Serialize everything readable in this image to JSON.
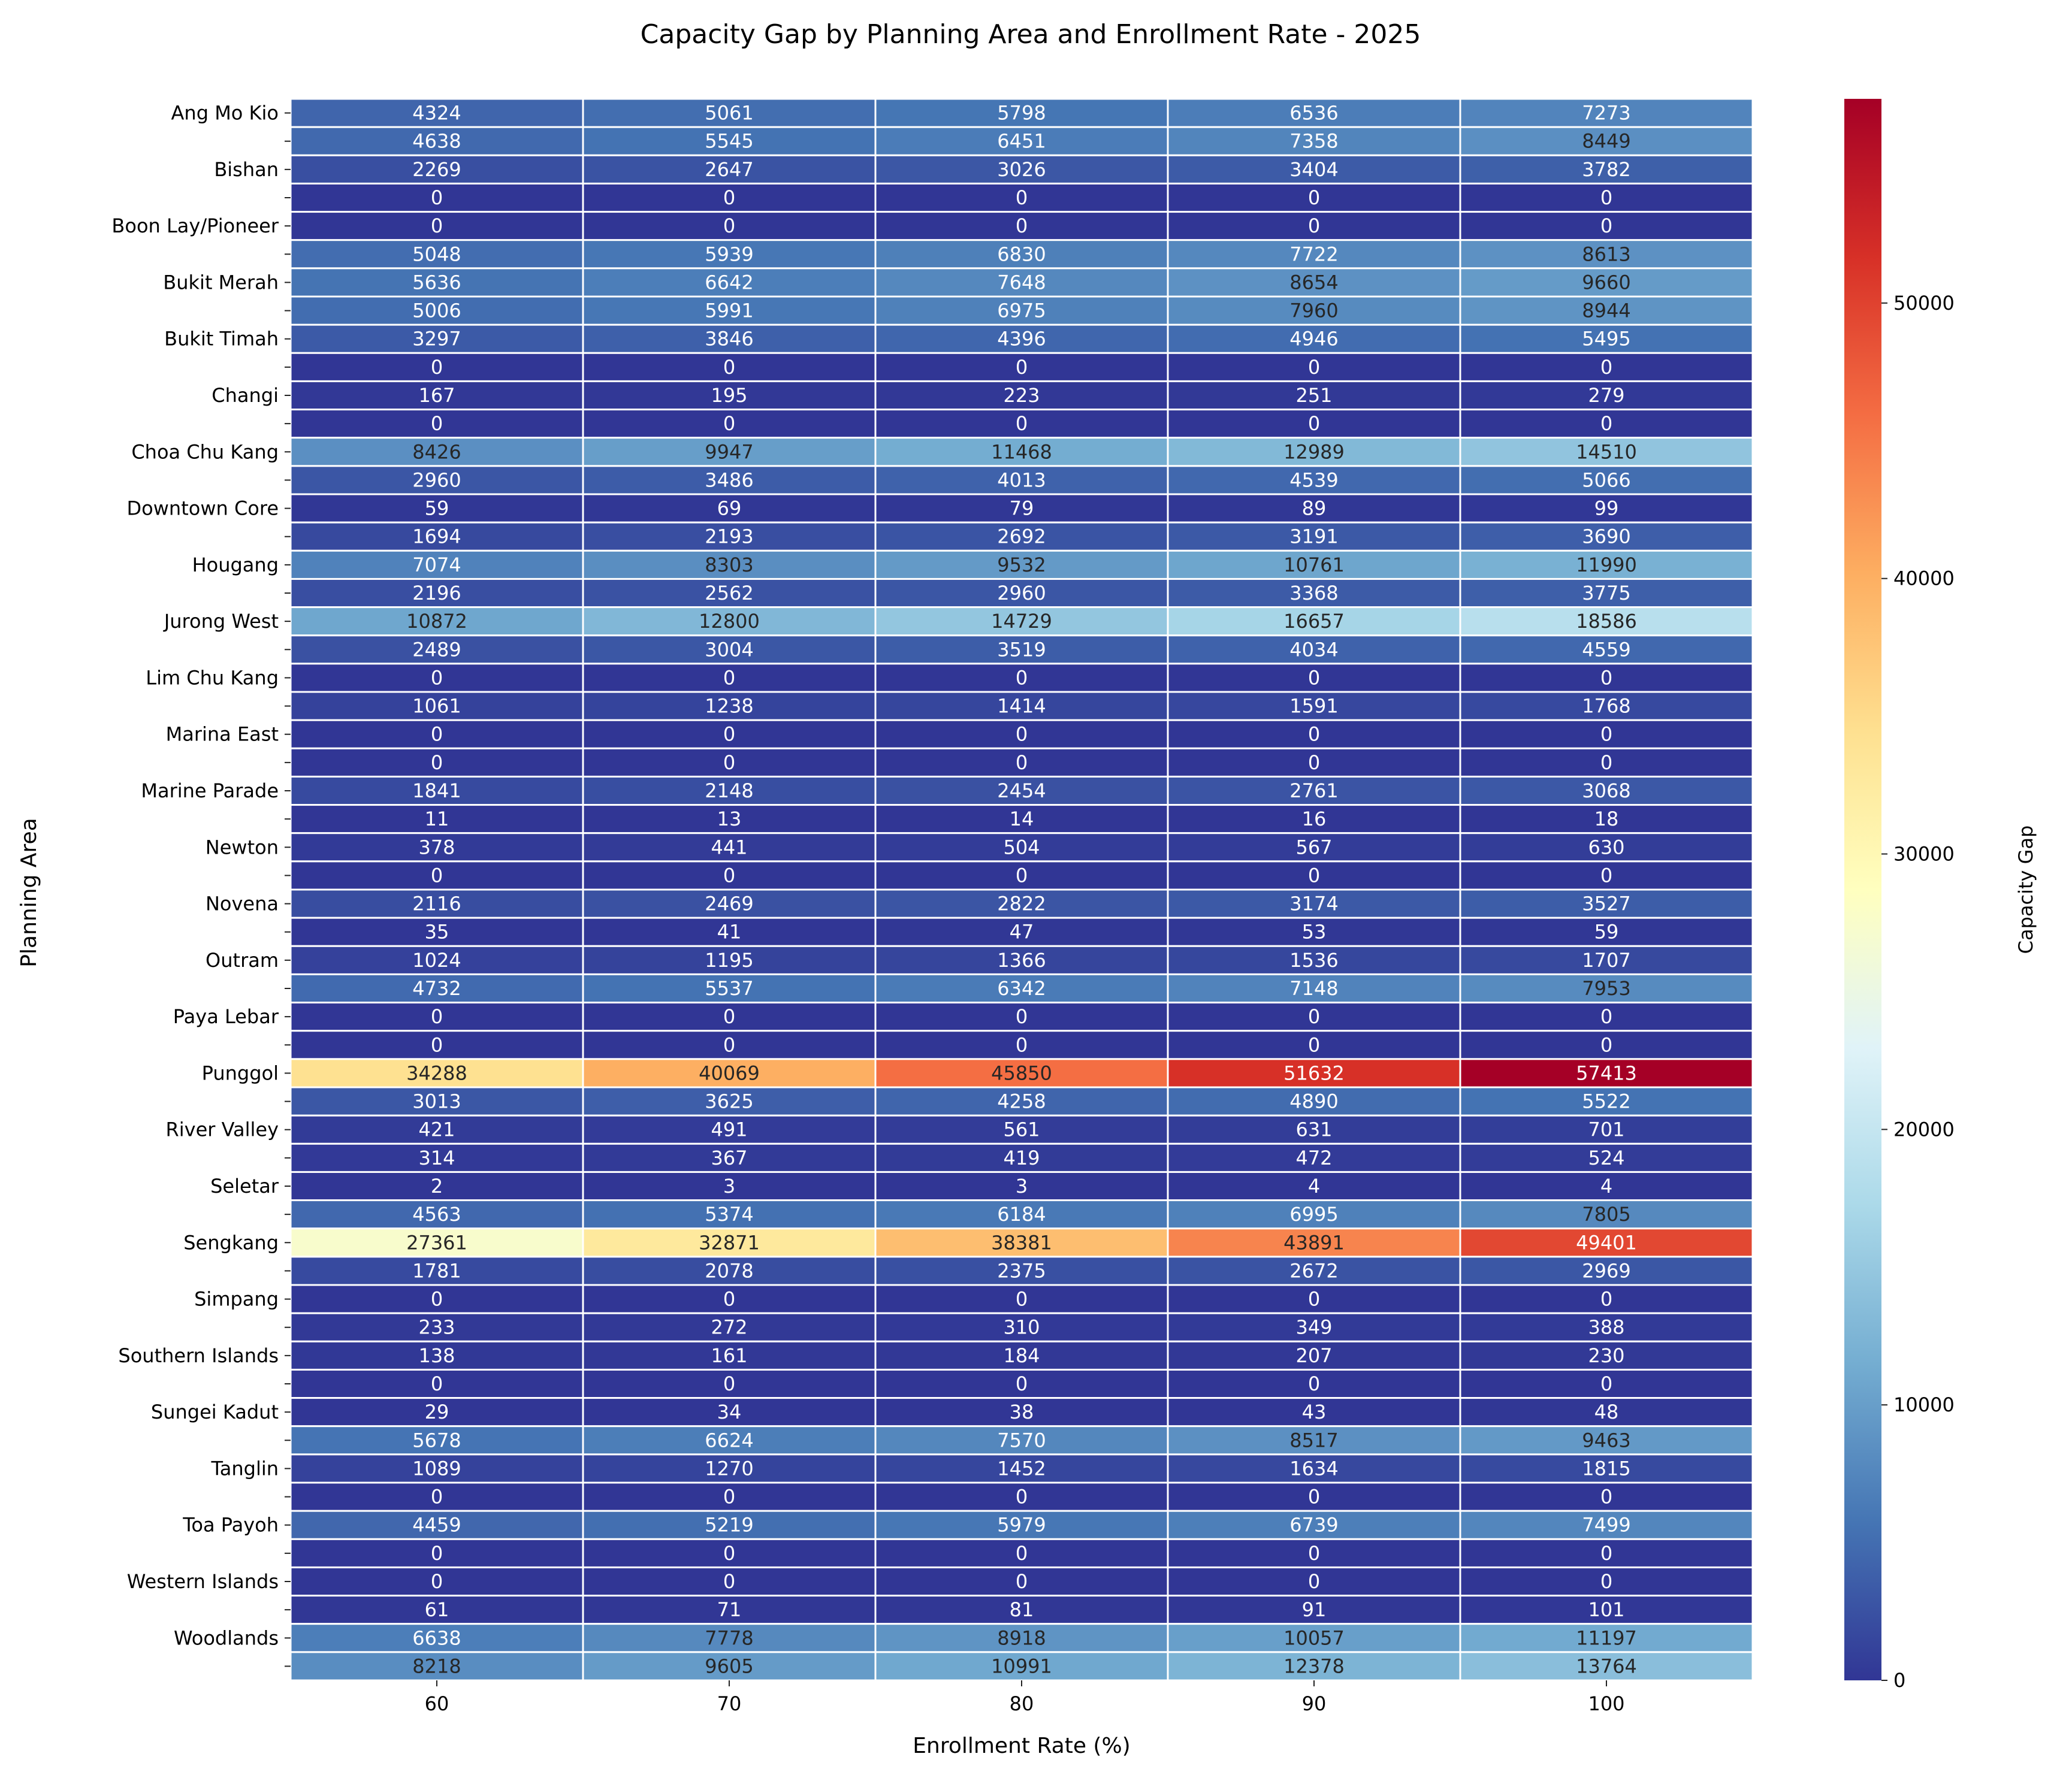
{
  "chart_data": {
    "type": "heatmap",
    "title": "Capacity Gap by Planning Area and Enrollment Rate - 2025",
    "xlabel": "Enrollment Rate (%)",
    "ylabel": "Planning Area",
    "colorbar_label": "Capacity Gap",
    "colormap": "RdYlBu_r",
    "value_range": [
      0,
      57413
    ],
    "colorbar_ticks": [
      "0",
      "10000",
      "20000",
      "30000",
      "40000",
      "50000"
    ],
    "x_categories": [
      "60",
      "70",
      "80",
      "90",
      "100"
    ],
    "y_tick_labels": [
      "Ang Mo Kio",
      "",
      "Bishan",
      "",
      "Boon Lay/Pioneer",
      "",
      "Bukit Merah",
      "",
      "Bukit Timah",
      "",
      "Changi",
      "",
      "Choa Chu Kang",
      "",
      "Downtown Core",
      "",
      "Hougang",
      "",
      "Jurong West",
      "",
      "Lim Chu Kang",
      "",
      "Marina East",
      "",
      "Marine Parade",
      "",
      "Newton",
      "",
      "Novena",
      "",
      "Outram",
      "",
      "Paya Lebar",
      "",
      "Punggol",
      "",
      "River Valley",
      "",
      "Seletar",
      "",
      "Sengkang",
      "",
      "Simpang",
      "",
      "Southern Islands",
      "",
      "Sungei Kadut",
      "",
      "Tanglin",
      "",
      "Toa Payoh",
      "",
      "Western Islands",
      "",
      "Woodlands",
      ""
    ],
    "values": [
      [
        4324,
        5061,
        5798,
        6536,
        7273
      ],
      [
        4638,
        5545,
        6451,
        7358,
        8449
      ],
      [
        2269,
        2647,
        3026,
        3404,
        3782
      ],
      [
        0,
        0,
        0,
        0,
        0
      ],
      [
        0,
        0,
        0,
        0,
        0
      ],
      [
        5048,
        5939,
        6830,
        7722,
        8613
      ],
      [
        5636,
        6642,
        7648,
        8654,
        9660
      ],
      [
        5006,
        5991,
        6975,
        7960,
        8944
      ],
      [
        3297,
        3846,
        4396,
        4946,
        5495
      ],
      [
        0,
        0,
        0,
        0,
        0
      ],
      [
        167,
        195,
        223,
        251,
        279
      ],
      [
        0,
        0,
        0,
        0,
        0
      ],
      [
        8426,
        9947,
        11468,
        12989,
        14510
      ],
      [
        2960,
        3486,
        4013,
        4539,
        5066
      ],
      [
        59,
        69,
        79,
        89,
        99
      ],
      [
        1694,
        2193,
        2692,
        3191,
        3690
      ],
      [
        7074,
        8303,
        9532,
        10761,
        11990
      ],
      [
        2196,
        2562,
        2960,
        3368,
        3775
      ],
      [
        10872,
        12800,
        14729,
        16657,
        18586
      ],
      [
        2489,
        3004,
        3519,
        4034,
        4559
      ],
      [
        0,
        0,
        0,
        0,
        0
      ],
      [
        1061,
        1238,
        1414,
        1591,
        1768
      ],
      [
        0,
        0,
        0,
        0,
        0
      ],
      [
        0,
        0,
        0,
        0,
        0
      ],
      [
        1841,
        2148,
        2454,
        2761,
        3068
      ],
      [
        11,
        13,
        14,
        16,
        18
      ],
      [
        378,
        441,
        504,
        567,
        630
      ],
      [
        0,
        0,
        0,
        0,
        0
      ],
      [
        2116,
        2469,
        2822,
        3174,
        3527
      ],
      [
        35,
        41,
        47,
        53,
        59
      ],
      [
        1024,
        1195,
        1366,
        1536,
        1707
      ],
      [
        4732,
        5537,
        6342,
        7148,
        7953
      ],
      [
        0,
        0,
        0,
        0,
        0
      ],
      [
        0,
        0,
        0,
        0,
        0
      ],
      [
        34288,
        40069,
        45850,
        51632,
        57413
      ],
      [
        3013,
        3625,
        4258,
        4890,
        5522
      ],
      [
        421,
        491,
        561,
        631,
        701
      ],
      [
        314,
        367,
        419,
        472,
        524
      ],
      [
        2,
        3,
        3,
        4,
        4
      ],
      [
        4563,
        5374,
        6184,
        6995,
        7805
      ],
      [
        27361,
        32871,
        38381,
        43891,
        49401
      ],
      [
        1781,
        2078,
        2375,
        2672,
        2969
      ],
      [
        0,
        0,
        0,
        0,
        0
      ],
      [
        233,
        272,
        310,
        349,
        388
      ],
      [
        138,
        161,
        184,
        207,
        230
      ],
      [
        0,
        0,
        0,
        0,
        0
      ],
      [
        29,
        34,
        38,
        43,
        48
      ],
      [
        5678,
        6624,
        7570,
        8517,
        9463
      ],
      [
        1089,
        1270,
        1452,
        1634,
        1815
      ],
      [
        0,
        0,
        0,
        0,
        0
      ],
      [
        4459,
        5219,
        5979,
        6739,
        7499
      ],
      [
        0,
        0,
        0,
        0,
        0
      ],
      [
        0,
        0,
        0,
        0,
        0
      ],
      [
        61,
        71,
        81,
        91,
        101
      ],
      [
        6638,
        7778,
        8918,
        10057,
        11197
      ],
      [
        8218,
        9605,
        10991,
        12378,
        13764
      ]
    ]
  }
}
